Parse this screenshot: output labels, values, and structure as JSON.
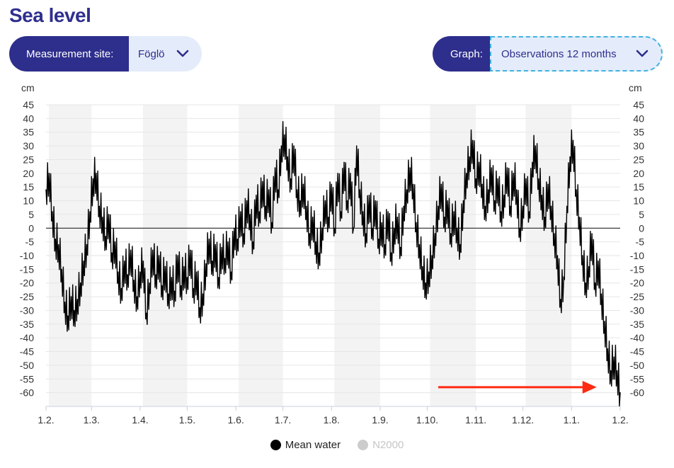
{
  "header": {
    "title": "Sea level"
  },
  "site_selector": {
    "label": "Measurement site:",
    "value": "Föglö"
  },
  "graph_selector": {
    "label": "Graph:",
    "value": "Observations 12 months"
  },
  "colors": {
    "brand": "#2e2e8c",
    "series": "#000000",
    "inactive": "#cccccc",
    "arrow": "#ff2a12",
    "band": "#f3f3f3"
  },
  "legend": [
    {
      "name": "Mean water",
      "color": "#000000",
      "active": true
    },
    {
      "name": "N2000",
      "color": "#cccccc",
      "active": false
    }
  ],
  "chart_data": {
    "type": "line",
    "xlabel": "",
    "ylabel": "cm",
    "ylabel_right": "cm",
    "ylim": [
      -65,
      45
    ],
    "yticks": [
      45,
      40,
      35,
      30,
      25,
      20,
      15,
      10,
      5,
      0,
      -5,
      -10,
      -15,
      -20,
      -25,
      -30,
      -35,
      -40,
      -45,
      -50,
      -55,
      -60
    ],
    "x_range_days": [
      0,
      366
    ],
    "xticks": [
      {
        "label": "1.2.",
        "day": 0
      },
      {
        "label": "1.3.",
        "day": 29
      },
      {
        "label": "1.4.",
        "day": 60
      },
      {
        "label": "1.5.",
        "day": 90
      },
      {
        "label": "1.6.",
        "day": 121
      },
      {
        "label": "1.7.",
        "day": 151
      },
      {
        "label": "1.8.",
        "day": 182
      },
      {
        "label": "1.9.",
        "day": 213
      },
      {
        "label": "1.10.",
        "day": 243
      },
      {
        "label": "1.11.",
        "day": 274
      },
      {
        "label": "1.12.",
        "day": 304
      },
      {
        "label": "1.1.",
        "day": 335
      },
      {
        "label": "1.2.",
        "day": 366
      }
    ],
    "grid": true,
    "zero_line": true,
    "alternating_month_bands": true,
    "series": [
      {
        "name": "Mean water",
        "color": "#000000",
        "points": [
          [
            0,
            14
          ],
          [
            2,
            20
          ],
          [
            4,
            6
          ],
          [
            6,
            -4
          ],
          [
            8,
            -6
          ],
          [
            10,
            -15
          ],
          [
            12,
            -27
          ],
          [
            14,
            -32
          ],
          [
            16,
            -25
          ],
          [
            18,
            -30
          ],
          [
            20,
            -26
          ],
          [
            22,
            -20
          ],
          [
            24,
            -12
          ],
          [
            26,
            -6
          ],
          [
            28,
            6
          ],
          [
            30,
            18
          ],
          [
            32,
            20
          ],
          [
            34,
            8
          ],
          [
            36,
            4
          ],
          [
            38,
            -3
          ],
          [
            40,
            5
          ],
          [
            42,
            -9
          ],
          [
            44,
            -5
          ],
          [
            46,
            -16
          ],
          [
            48,
            -22
          ],
          [
            50,
            -12
          ],
          [
            52,
            -17
          ],
          [
            54,
            -8
          ],
          [
            56,
            -19
          ],
          [
            58,
            -25
          ],
          [
            60,
            -16
          ],
          [
            62,
            -12
          ],
          [
            64,
            -31
          ],
          [
            66,
            -20
          ],
          [
            68,
            -8
          ],
          [
            70,
            -17
          ],
          [
            72,
            -10
          ],
          [
            74,
            -21
          ],
          [
            76,
            -14
          ],
          [
            78,
            -24
          ],
          [
            80,
            -18
          ],
          [
            82,
            -23
          ],
          [
            84,
            -10
          ],
          [
            86,
            -21
          ],
          [
            88,
            -14
          ],
          [
            90,
            -18
          ],
          [
            92,
            -8
          ],
          [
            94,
            -22
          ],
          [
            96,
            -16
          ],
          [
            98,
            -29
          ],
          [
            100,
            -24
          ],
          [
            102,
            -13
          ],
          [
            104,
            -4
          ],
          [
            106,
            -12
          ],
          [
            108,
            -6
          ],
          [
            110,
            -18
          ],
          [
            112,
            -7
          ],
          [
            114,
            -11
          ],
          [
            116,
            -5
          ],
          [
            118,
            -16
          ],
          [
            120,
            0
          ],
          [
            122,
            -4
          ],
          [
            124,
            6
          ],
          [
            126,
            -2
          ],
          [
            128,
            10
          ],
          [
            130,
            5
          ],
          [
            132,
            -5
          ],
          [
            134,
            12
          ],
          [
            136,
            6
          ],
          [
            138,
            17
          ],
          [
            140,
            8
          ],
          [
            142,
            14
          ],
          [
            144,
            2
          ],
          [
            146,
            22
          ],
          [
            148,
            14
          ],
          [
            150,
            30
          ],
          [
            152,
            34
          ],
          [
            154,
            26
          ],
          [
            156,
            18
          ],
          [
            158,
            30
          ],
          [
            160,
            14
          ],
          [
            162,
            10
          ],
          [
            164,
            16
          ],
          [
            166,
            8
          ],
          [
            168,
            -2
          ],
          [
            170,
            4
          ],
          [
            172,
            -5
          ],
          [
            174,
            -9
          ],
          [
            176,
            0
          ],
          [
            178,
            10
          ],
          [
            180,
            4
          ],
          [
            182,
            16
          ],
          [
            184,
            0
          ],
          [
            186,
            20
          ],
          [
            188,
            6
          ],
          [
            190,
            24
          ],
          [
            192,
            10
          ],
          [
            194,
            20
          ],
          [
            196,
            0
          ],
          [
            198,
            30
          ],
          [
            200,
            14
          ],
          [
            202,
            6
          ],
          [
            204,
            -2
          ],
          [
            206,
            12
          ],
          [
            208,
            0
          ],
          [
            210,
            10
          ],
          [
            212,
            -4
          ],
          [
            214,
            2
          ],
          [
            216,
            -6
          ],
          [
            218,
            6
          ],
          [
            220,
            -9
          ],
          [
            222,
            0
          ],
          [
            224,
            4
          ],
          [
            226,
            -7
          ],
          [
            228,
            8
          ],
          [
            230,
            14
          ],
          [
            232,
            22
          ],
          [
            234,
            16
          ],
          [
            236,
            2
          ],
          [
            238,
            -6
          ],
          [
            240,
            -14
          ],
          [
            242,
            -20
          ],
          [
            244,
            -16
          ],
          [
            246,
            -10
          ],
          [
            248,
            -2
          ],
          [
            250,
            8
          ],
          [
            252,
            16
          ],
          [
            254,
            4
          ],
          [
            256,
            10
          ],
          [
            258,
            -2
          ],
          [
            260,
            6
          ],
          [
            262,
            0
          ],
          [
            264,
            -6
          ],
          [
            266,
            10
          ],
          [
            268,
            20
          ],
          [
            270,
            26
          ],
          [
            272,
            32
          ],
          [
            274,
            18
          ],
          [
            276,
            24
          ],
          [
            278,
            16
          ],
          [
            280,
            8
          ],
          [
            282,
            14
          ],
          [
            284,
            22
          ],
          [
            286,
            10
          ],
          [
            288,
            18
          ],
          [
            290,
            6
          ],
          [
            292,
            12
          ],
          [
            294,
            22
          ],
          [
            296,
            8
          ],
          [
            298,
            20
          ],
          [
            300,
            14
          ],
          [
            302,
            0
          ],
          [
            304,
            8
          ],
          [
            306,
            18
          ],
          [
            308,
            6
          ],
          [
            310,
            24
          ],
          [
            312,
            30
          ],
          [
            314,
            18
          ],
          [
            316,
            12
          ],
          [
            318,
            4
          ],
          [
            320,
            16
          ],
          [
            322,
            8
          ],
          [
            324,
            -2
          ],
          [
            326,
            -10
          ],
          [
            328,
            -26
          ],
          [
            330,
            -18
          ],
          [
            332,
            8
          ],
          [
            334,
            26
          ],
          [
            336,
            32
          ],
          [
            338,
            14
          ],
          [
            340,
            4
          ],
          [
            342,
            -10
          ],
          [
            344,
            -20
          ],
          [
            346,
            -14
          ],
          [
            348,
            -2
          ],
          [
            350,
            -20
          ],
          [
            352,
            -12
          ],
          [
            354,
            -24
          ],
          [
            356,
            -34
          ],
          [
            358,
            -44
          ],
          [
            360,
            -52
          ],
          [
            362,
            -47
          ],
          [
            364,
            -52
          ],
          [
            366,
            -60
          ]
        ]
      }
    ],
    "annotation": {
      "type": "arrow",
      "from_day": 250,
      "to_day": 351,
      "y": -58,
      "color": "#ff2a12"
    }
  }
}
